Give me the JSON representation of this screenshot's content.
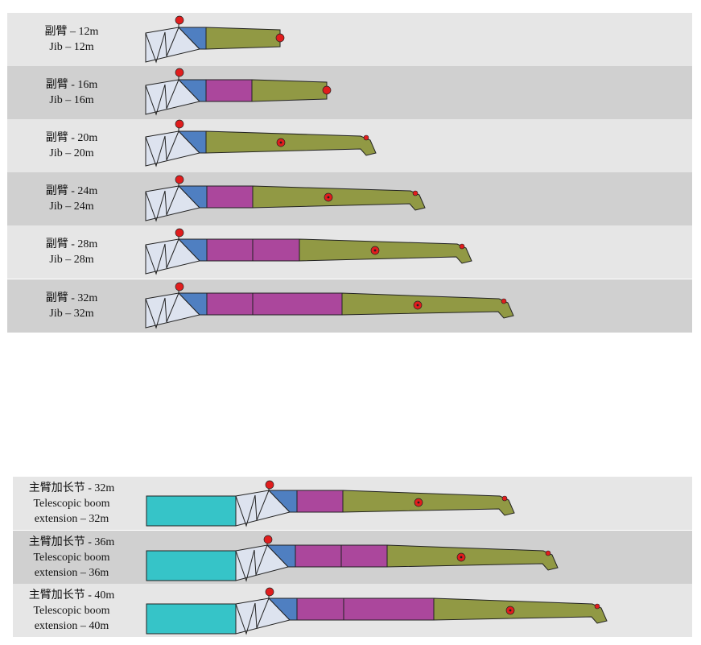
{
  "jib_rows": [
    {
      "cn": "副臂 – 12m",
      "en": "Jib – 12m",
      "segments": [],
      "jib_length_m": 12
    },
    {
      "cn": "副臂 - 16m",
      "en": "Jib – 16m",
      "segments": [
        "magenta"
      ],
      "jib_length_m": 16
    },
    {
      "cn": "副臂 - 20m",
      "en": "Jib – 20m",
      "segments": [],
      "jib_length_m": 20
    },
    {
      "cn": "副臂 - 24m",
      "en": "Jib – 24m",
      "segments": [
        "magenta"
      ],
      "jib_length_m": 24
    },
    {
      "cn": "副臂 - 28m",
      "en": "Jib – 28m",
      "segments": [
        "magenta",
        "magenta"
      ],
      "jib_length_m": 28
    },
    {
      "cn": "副臂 - 32m",
      "en": "Jib – 32m",
      "segments": [
        "magenta",
        "magenta"
      ],
      "jib_length_m": 32
    }
  ],
  "extension_rows": [
    {
      "cn": "主臂加长节 - 32m",
      "en1": "Telescopic boom",
      "en2": "extension – 32m",
      "segments": [
        "magenta"
      ],
      "length_m": 32
    },
    {
      "cn": "主臂加长节 - 36m",
      "en1": "Telescopic boom",
      "en2": "extension – 36m",
      "segments": [
        "magenta",
        "magenta"
      ],
      "length_m": 36
    },
    {
      "cn": "主臂加长节 - 40m",
      "en1": "Telescopic boom",
      "en2": "extension – 40m",
      "segments": [
        "magenta",
        "magenta"
      ],
      "length_m": 40
    }
  ],
  "colors": {
    "row_light": "#e6e6e6",
    "row_dark": "#d0d0d0",
    "lattice": "#dde3ef",
    "adapter_blue": "#4f7fc1",
    "insert_magenta": "#ab479c",
    "tip_olive": "#919944",
    "boom_teal": "#36c4c8",
    "pin_red": "#e11d1d"
  }
}
